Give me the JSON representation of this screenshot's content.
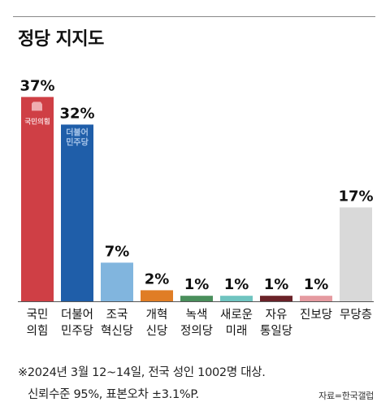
{
  "title": "정당 지지도",
  "chart_data": {
    "type": "bar",
    "ylim": [
      0,
      40
    ],
    "grid": false,
    "categories": [
      {
        "label": [
          "국민",
          "의힘"
        ],
        "value": 37,
        "display": "37%",
        "color": "#cf3f45",
        "logo": "국민의힘"
      },
      {
        "label": [
          "더불어",
          "민주당"
        ],
        "value": 32,
        "display": "32%",
        "color": "#1f5ea9",
        "logo": "더불어민주당"
      },
      {
        "label": [
          "조국",
          "혁신당"
        ],
        "value": 7,
        "display": "7%",
        "color": "#81b5de"
      },
      {
        "label": [
          "개혁",
          "신당"
        ],
        "value": 2,
        "display": "2%",
        "color": "#e07d25"
      },
      {
        "label": [
          "녹색",
          "정의당"
        ],
        "value": 1,
        "display": "1%",
        "color": "#4a8f5c"
      },
      {
        "label": [
          "새로운",
          "미래"
        ],
        "value": 1,
        "display": "1%",
        "color": "#6fc4c0"
      },
      {
        "label": [
          "자유",
          "통일당"
        ],
        "value": 1,
        "display": "1%",
        "color": "#6b2228"
      },
      {
        "label": [
          "진보당"
        ],
        "value": 1,
        "display": "1%",
        "color": "#e59aa0"
      },
      {
        "label": [
          "무당층"
        ],
        "value": 17,
        "display": "17%",
        "color": "#d9d9d9"
      }
    ]
  },
  "footnote": {
    "line1": "※2024년 3월 12~14일, 전국 성인 1002명 대상.",
    "line2": "신뢰수준 95%, 표본오차 ±3.1%P."
  },
  "source": "자료=한국갤럽"
}
